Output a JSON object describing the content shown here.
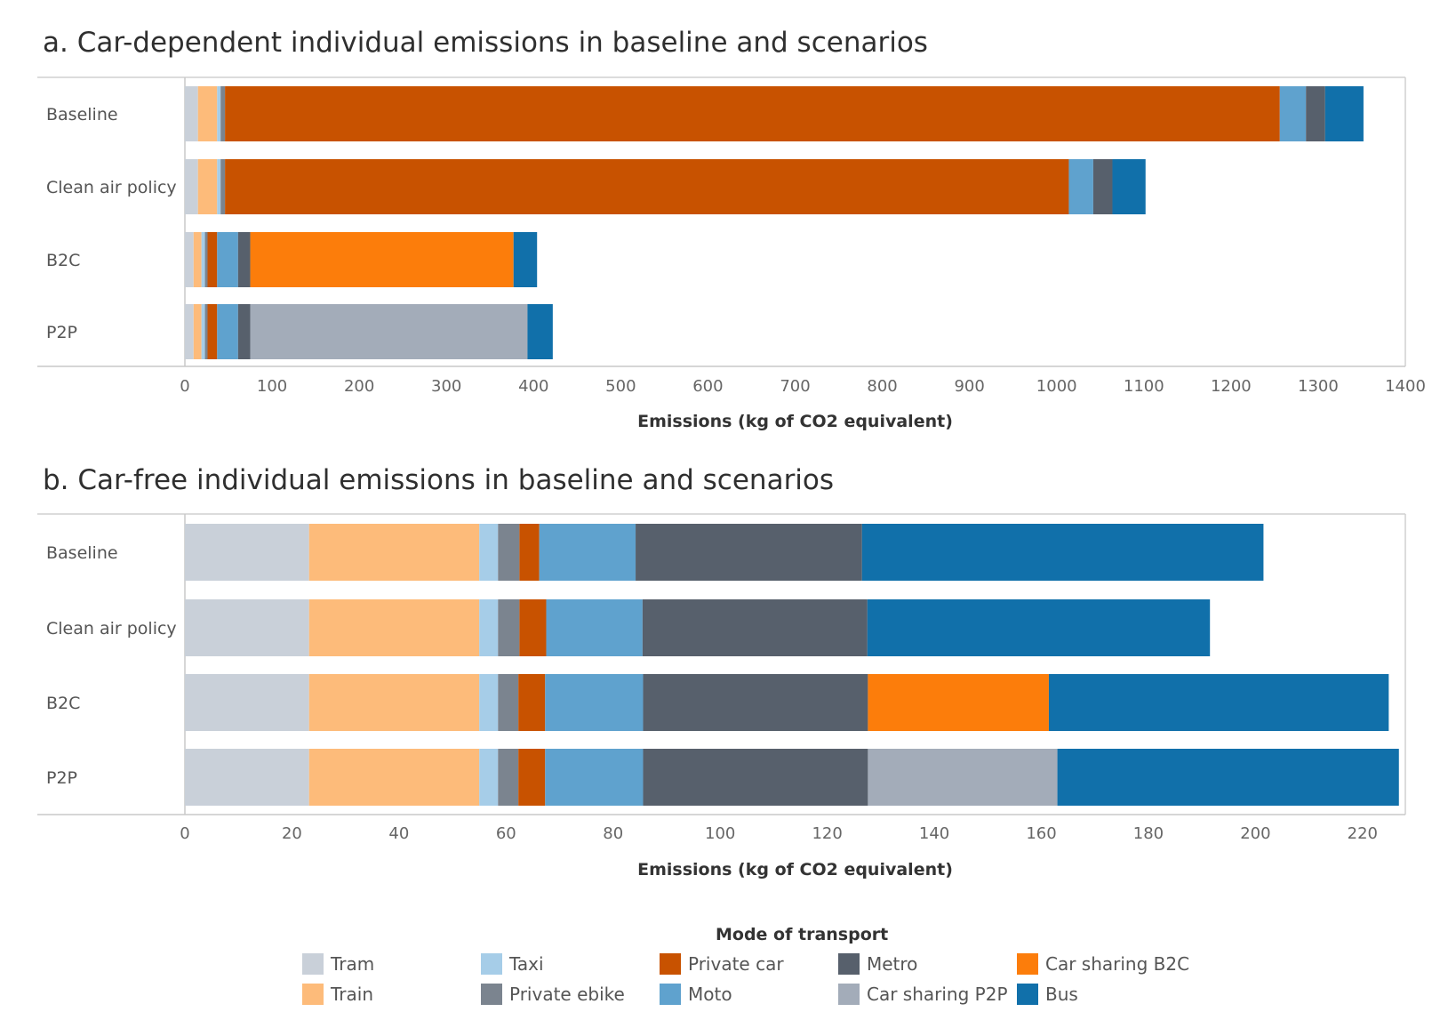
{
  "legend": {
    "title": "Mode of transport",
    "items": [
      {
        "label": "Tram",
        "color": "#c9d0d9"
      },
      {
        "label": "Train",
        "color": "#fdbb7a"
      },
      {
        "label": "Taxi",
        "color": "#a6cde8"
      },
      {
        "label": "Private ebike",
        "color": "#7b848f"
      },
      {
        "label": "Private car",
        "color": "#c85200"
      },
      {
        "label": "Moto",
        "color": "#5fa2ce"
      },
      {
        "label": "Metro",
        "color": "#57606c"
      },
      {
        "label": "Car sharing P2P",
        "color": "#a3acb9"
      },
      {
        "label": "Car sharing B2C",
        "color": "#fc7d0b"
      },
      {
        "label": "Bus",
        "color": "#1170aa"
      }
    ]
  },
  "chart_data": [
    {
      "type": "bar",
      "orientation": "horizontal",
      "stacked": true,
      "title": "a. Car-dependent individual emissions in baseline and scenarios",
      "xlabel": "Emissions (kg of CO2 equivalent)",
      "ylabel": "",
      "xlim": [
        0,
        1400
      ],
      "xticks": [
        0,
        100,
        200,
        300,
        400,
        500,
        600,
        700,
        800,
        900,
        1000,
        1100,
        1200,
        1300,
        1400
      ],
      "categories": [
        "Baseline",
        "Clean air policy",
        "B2C",
        "P2P"
      ],
      "series": [
        {
          "name": "Tram",
          "values": [
            15,
            15,
            10,
            10
          ]
        },
        {
          "name": "Train",
          "values": [
            22,
            22,
            9,
            9
          ]
        },
        {
          "name": "Taxi",
          "values": [
            4,
            4,
            4,
            4
          ]
        },
        {
          "name": "Private ebike",
          "values": [
            5,
            5,
            3,
            3
          ]
        },
        {
          "name": "Private car",
          "values": [
            1210,
            968,
            11,
            11
          ]
        },
        {
          "name": "Moto",
          "values": [
            30,
            28,
            24,
            24
          ]
        },
        {
          "name": "Metro",
          "values": [
            22,
            22,
            14,
            14
          ]
        },
        {
          "name": "Car sharing P2P",
          "values": [
            0,
            0,
            0,
            318
          ]
        },
        {
          "name": "Car sharing B2C",
          "values": [
            0,
            0,
            302,
            0
          ]
        },
        {
          "name": "Bus",
          "values": [
            44,
            38,
            27,
            29
          ]
        }
      ]
    },
    {
      "type": "bar",
      "orientation": "horizontal",
      "stacked": true,
      "title": "b. Car-free individual emissions in baseline and scenarios",
      "xlabel": "Emissions (kg of CO2 equivalent)",
      "ylabel": "",
      "xlim": [
        0,
        228
      ],
      "xticks": [
        0,
        20,
        40,
        60,
        80,
        100,
        120,
        140,
        160,
        180,
        200,
        220
      ],
      "categories": [
        "Baseline",
        "Clean air policy",
        "B2C",
        "P2P"
      ],
      "series": [
        {
          "name": "Tram",
          "values": [
            23.2,
            23.2,
            23.2,
            23.2
          ]
        },
        {
          "name": "Train",
          "values": [
            31.8,
            31.8,
            31.8,
            31.8
          ]
        },
        {
          "name": "Taxi",
          "values": [
            3.5,
            3.5,
            3.5,
            3.5
          ]
        },
        {
          "name": "Private ebike",
          "values": [
            4,
            4,
            3.8,
            3.8
          ]
        },
        {
          "name": "Private car",
          "values": [
            3.7,
            5,
            5,
            5
          ]
        },
        {
          "name": "Moto",
          "values": [
            18,
            18,
            18.3,
            18.3
          ]
        },
        {
          "name": "Metro",
          "values": [
            42.3,
            42,
            42,
            42
          ]
        },
        {
          "name": "Car sharing P2P",
          "values": [
            0,
            0,
            0,
            35.4
          ]
        },
        {
          "name": "Car sharing B2C",
          "values": [
            0,
            0,
            33.8,
            0
          ]
        },
        {
          "name": "Bus",
          "values": [
            75,
            64,
            63.5,
            63.8
          ]
        }
      ]
    }
  ]
}
